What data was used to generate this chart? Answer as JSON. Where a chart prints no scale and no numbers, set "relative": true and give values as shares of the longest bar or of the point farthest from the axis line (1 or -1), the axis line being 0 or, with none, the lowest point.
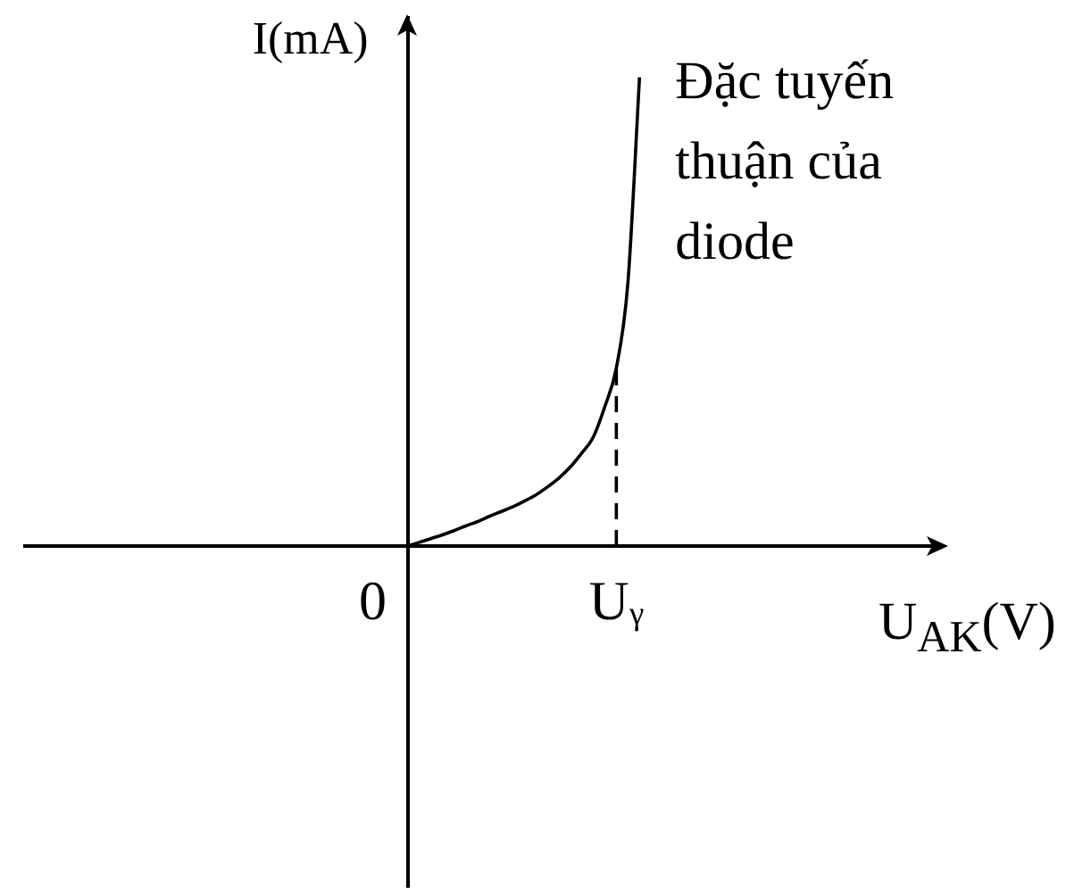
{
  "chart_data": {
    "type": "line",
    "relative": true,
    "xlabel": "U$_{AK}$(V)",
    "ylabel": "I(mA)",
    "annotations": [
      "Đặc tuyến thuận của diode"
    ],
    "categories": [
      null,
      null,
      null,
      null,
      null,
      null,
      null,
      null,
      null,
      null,
      null,
      null,
      null,
      null,
      null,
      null,
      null,
      null,
      null,
      null,
      null,
      null,
      null,
      null,
      null,
      null,
      null,
      null,
      null,
      null,
      "0",
      null,
      null,
      null,
      null,
      null,
      null,
      null,
      null,
      null,
      null,
      null,
      null,
      null,
      null,
      null,
      null,
      null,
      null,
      null,
      null,
      "Uᵧ",
      null,
      null,
      null,
      null,
      null,
      null,
      null,
      null,
      null,
      null,
      null,
      null,
      null,
      null,
      null,
      null,
      null,
      null,
      null,
      null,
      null,
      null,
      null,
      null,
      null,
      null,
      null,
      null
    ],
    "tick_labels": "x",
    "grid": false,
    "legend": false,
    "marker": "none",
    "series": [
      {
        "color": "#000000",
        "line_style": "solid",
        "values": [
          null,
          null,
          null,
          null,
          null,
          null,
          null,
          null,
          null,
          null,
          null,
          null,
          null,
          null,
          null,
          null,
          null,
          null,
          null,
          null,
          null,
          null,
          null,
          null,
          null,
          null,
          null,
          null,
          null,
          null,
          null,
          null,
          null,
          0,
          0.008,
          0.016,
          0.024,
          0.033,
          0.043,
          0.052,
          0.063,
          0.073,
          0.083,
          0.095,
          0.108,
          0.125,
          0.144,
          0.168,
          0.198,
          0.232,
          0.297,
          0.38,
          0.563,
          1.0,
          null,
          null,
          null,
          null,
          null,
          null,
          null,
          null,
          null,
          null,
          null,
          null,
          null,
          null,
          null,
          null,
          null,
          null,
          null,
          null,
          null,
          null,
          null,
          null,
          null,
          null
        ]
      },
      {
        "type": "line",
        "color": "#000000",
        "line_style": "dashed",
        "x": [
          "Uᵧ",
          "Uᵧ"
        ],
        "values": [
          0,
          0.38
        ]
      }
    ]
  }
}
